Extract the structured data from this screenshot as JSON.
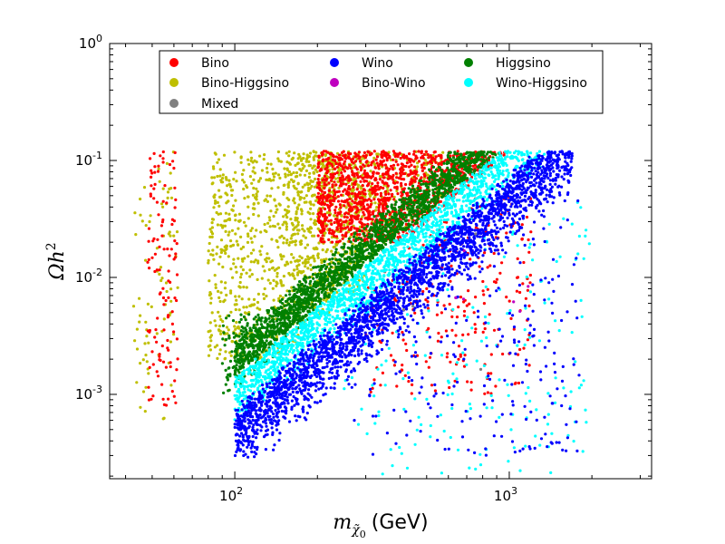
{
  "chart_data": {
    "type": "scatter",
    "x_scale": "log",
    "y_scale": "log",
    "xlim": [
      35,
      3300
    ],
    "ylim": [
      0.00019,
      1
    ],
    "xlabel_math": "m",
    "xlabel_sub": "χ̃",
    "xlabel_sub0": "0",
    "xlabel_unit": "(GeV)",
    "ylabel_math": "Ωh",
    "ylabel_sup": "2",
    "x_ticks": [
      {
        "value": 100,
        "base": "10",
        "exp": "2"
      },
      {
        "value": 1000,
        "base": "10",
        "exp": "3"
      }
    ],
    "y_ticks": [
      {
        "value": 0.001,
        "base": "10",
        "exp": "-3"
      },
      {
        "value": 0.01,
        "base": "10",
        "exp": "-2"
      },
      {
        "value": 0.1,
        "base": "10",
        "exp": "-1"
      },
      {
        "value": 1,
        "base": "10",
        "exp": "0"
      }
    ],
    "legend": {
      "placement": "top",
      "entries": [
        {
          "name": "Bino",
          "color": "#ff0000"
        },
        {
          "name": "Wino",
          "color": "#0000ff"
        },
        {
          "name": "Higgsino",
          "color": "#008000"
        },
        {
          "name": "Bino-Higgsino",
          "color": "#bfbf00"
        },
        {
          "name": "Bino-Wino",
          "color": "#bf00bf"
        },
        {
          "name": "Wino-Higgsino",
          "color": "#00ffff"
        },
        {
          "name": "Mixed",
          "color": "#808080"
        }
      ]
    },
    "series": [
      {
        "name": "Bino-Higgsino",
        "color": "#bfbf00",
        "clusters": [
          {
            "xr": [
              42,
              50
            ],
            "yr": [
              0.0007,
              0.06
            ],
            "n": 35
          },
          {
            "xr": [
              52,
              62
            ],
            "yr": [
              0.0006,
              0.12
            ],
            "n": 45
          },
          {
            "xr": [
              80,
              300
            ],
            "yr": [
              0.002,
              0.12
            ],
            "n": 900,
            "above": 0.85
          },
          {
            "xr": [
              150,
              600
            ],
            "yr": [
              0.01,
              0.12
            ],
            "n": 500,
            "above": 1.2
          }
        ]
      },
      {
        "name": "Bino",
        "color": "#ff0000",
        "clusters": [
          {
            "xr": [
              48,
              62
            ],
            "yr": [
              0.0007,
              0.12
            ],
            "n": 120
          },
          {
            "xr": [
              200,
              1000
            ],
            "yr": [
              0.02,
              0.12
            ],
            "n": 1300,
            "above": 1.0
          },
          {
            "xr": [
              300,
              1200
            ],
            "yr": [
              0.001,
              0.05
            ],
            "n": 250,
            "below": 0.8
          }
        ]
      },
      {
        "name": "Higgsino",
        "color": "#008000",
        "clusters": [
          {
            "xr": [
              100,
              1400
            ],
            "yr": [
              0.001,
              0.12
            ],
            "band": [
              1.2,
              2.2
            ],
            "n": 1800
          },
          {
            "xr": [
              90,
              200
            ],
            "yr": [
              0.001,
              0.005
            ],
            "n": 150,
            "above": 0.9
          }
        ]
      },
      {
        "name": "Wino-Higgsino",
        "color": "#00ffff",
        "clusters": [
          {
            "xr": [
              100,
              1600
            ],
            "yr": [
              0.0003,
              0.12
            ],
            "band": [
              0.5,
              1.15
            ],
            "n": 1600
          },
          {
            "xr": [
              250,
              2000
            ],
            "yr": [
              0.0002,
              0.05
            ],
            "n": 180,
            "below": 0.5
          }
        ]
      },
      {
        "name": "Wino",
        "color": "#0000ff",
        "clusters": [
          {
            "xr": [
              100,
              1700
            ],
            "yr": [
              0.00028,
              0.12
            ],
            "band": [
              0.22,
              0.55
            ],
            "n": 2600
          },
          {
            "xr": [
              250,
              1800
            ],
            "yr": [
              0.0003,
              0.08
            ],
            "n": 250,
            "below": 0.45
          }
        ]
      },
      {
        "name": "Bino-Wino",
        "color": "#bf00bf",
        "clusters": [
          {
            "xr": [
              600,
              1200
            ],
            "yr": [
              0.005,
              0.08
            ],
            "n": 6,
            "below": 0.8
          }
        ]
      },
      {
        "name": "Mixed",
        "color": "#808080",
        "clusters": [
          {
            "xr": [
              300,
              900
            ],
            "yr": [
              0.0015,
              0.05
            ],
            "n": 4,
            "below": 0.8
          }
        ]
      }
    ]
  }
}
